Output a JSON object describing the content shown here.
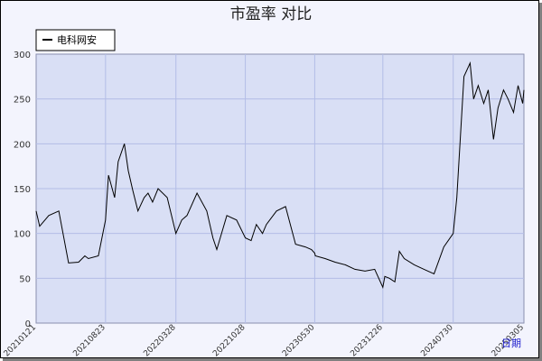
{
  "chart_data": {
    "type": "line",
    "title": "市盈率  对比",
    "ylim": [
      0,
      300
    ],
    "yticks": [
      0,
      50,
      100,
      150,
      200,
      250,
      300
    ],
    "grid": true,
    "legend_position": "top-left",
    "x_tick_labels": [
      "20210121",
      "20210823",
      "20220328",
      "20221028",
      "20230530",
      "20231226",
      "20240730",
      "20250305"
    ],
    "x_axis_note": "日期",
    "series": [
      {
        "name": "电科网安",
        "color": "#000000",
        "x": [
          "20210121",
          "20210201",
          "20210301",
          "20210401",
          "20210501",
          "20210601",
          "20210620",
          "20210701",
          "20210801",
          "20210823",
          "20210901",
          "20210920",
          "20211001",
          "20211020",
          "20211101",
          "20211115",
          "20211201",
          "20211220",
          "20220101",
          "20220115",
          "20220201",
          "20220301",
          "20220328",
          "20220415",
          "20220501",
          "20220601",
          "20220701",
          "20220720",
          "20220801",
          "20220901",
          "20221001",
          "20221028",
          "20221115",
          "20221201",
          "20221220",
          "20230101",
          "20230201",
          "20230301",
          "20230401",
          "20230501",
          "20230520",
          "20230530",
          "20230601",
          "20230701",
          "20230801",
          "20230901",
          "20231001",
          "20231101",
          "20231201",
          "20231226",
          "20240101",
          "20240115",
          "20240201",
          "20240215",
          "20240301",
          "20240401",
          "20240501",
          "20240601",
          "20240701",
          "20240730",
          "20240810",
          "20240901",
          "20240920",
          "20241001",
          "20241015",
          "20241101",
          "20241115",
          "20241201",
          "20241215",
          "20250101",
          "20250115",
          "20250201",
          "20250215",
          "20250301",
          "20250305"
        ],
        "values": [
          125,
          108,
          120,
          125,
          67,
          68,
          75,
          72,
          75,
          115,
          165,
          140,
          180,
          200,
          170,
          148,
          125,
          140,
          145,
          135,
          150,
          140,
          100,
          115,
          120,
          145,
          125,
          95,
          82,
          120,
          115,
          95,
          92,
          110,
          100,
          110,
          125,
          130,
          88,
          85,
          82,
          78,
          75,
          72,
          68,
          65,
          60,
          58,
          60,
          40,
          52,
          50,
          46,
          80,
          72,
          65,
          60,
          55,
          85,
          100,
          140,
          275,
          290,
          250,
          265,
          245,
          260,
          205,
          240,
          260,
          250,
          235,
          265,
          245,
          260
        ]
      }
    ]
  }
}
